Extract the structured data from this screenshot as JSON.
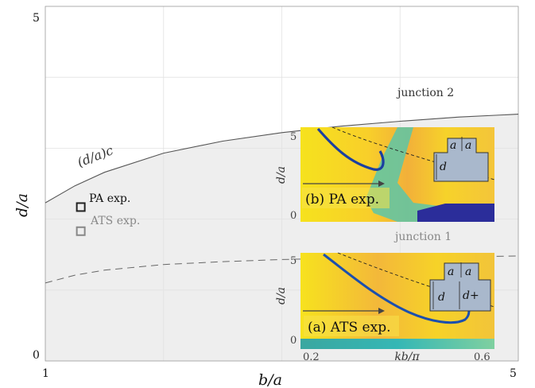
{
  "chart_data": {
    "type": "line",
    "xlabel": "b/a",
    "ylabel": "d/a",
    "xlim": [
      1,
      5
    ],
    "ylim": [
      0,
      5
    ],
    "x_ticks": [
      "1",
      "5"
    ],
    "y_ticks": [
      "0",
      "5"
    ],
    "grid": true,
    "series": [
      {
        "name": "junction 2",
        "style": "solid",
        "color": "#555555",
        "x": [
          1.0,
          1.25,
          1.5,
          2.0,
          2.5,
          3.0,
          3.5,
          4.0,
          4.5,
          5.0
        ],
        "y": [
          2.23,
          2.47,
          2.66,
          2.93,
          3.1,
          3.22,
          3.31,
          3.38,
          3.44,
          3.48
        ]
      },
      {
        "name": "junction 1",
        "style": "dashed",
        "color": "#666666",
        "x": [
          1.0,
          1.25,
          1.5,
          2.0,
          2.5,
          3.0,
          3.5,
          4.0,
          4.5,
          5.0
        ],
        "y": [
          1.1,
          1.21,
          1.28,
          1.36,
          1.4,
          1.43,
          1.45,
          1.46,
          1.47,
          1.48
        ]
      }
    ],
    "shaded_region_label": "(d/a)c",
    "points": [
      {
        "label": "PA exp.",
        "x": 1.3,
        "y": 2.17,
        "marker": "square",
        "color": "#222222"
      },
      {
        "label": "ATS exp.",
        "x": 1.3,
        "y": 1.83,
        "marker": "square",
        "color": "#888888"
      }
    ],
    "insets": [
      {
        "title": "(b) PA exp.",
        "ylabel": "d/a",
        "y_ticks": [
          "0",
          "5"
        ],
        "geometry_labels": [
          "a",
          "a",
          "d"
        ]
      },
      {
        "title": "(a) ATS exp.",
        "ylabel": "d/a",
        "y_ticks": [
          "0",
          "5"
        ],
        "xlabel": "kb/π",
        "x_ticks": [
          "0.2",
          "0.6"
        ],
        "geometry_labels": [
          "a",
          "a",
          "d",
          "d+"
        ]
      }
    ]
  }
}
